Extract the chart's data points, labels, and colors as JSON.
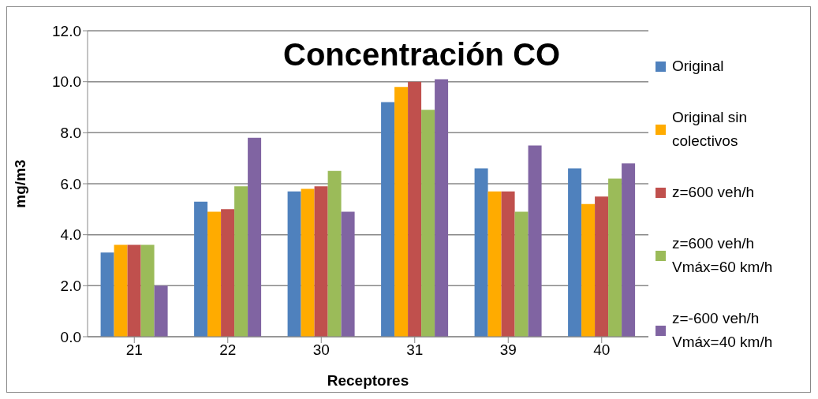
{
  "chart_data": {
    "type": "bar",
    "title": "Concentración CO",
    "xlabel": "Receptores",
    "ylabel": "mg/m3",
    "categories": [
      "21",
      "22",
      "30",
      "31",
      "39",
      "40"
    ],
    "series": [
      {
        "name": "Original",
        "color": "#4f81bd",
        "values": [
          3.3,
          5.3,
          5.7,
          9.2,
          6.6,
          6.6
        ]
      },
      {
        "name": "Original sin colectivos",
        "color": "#ffab00",
        "values": [
          3.6,
          4.9,
          5.8,
          9.8,
          5.7,
          5.2
        ]
      },
      {
        "name": "z=600 veh/h",
        "color": "#c0504d",
        "values": [
          3.6,
          5.0,
          5.9,
          10.0,
          5.7,
          5.5
        ]
      },
      {
        "name": "z=600 veh/h Vmáx=60 km/h",
        "color": "#9bbb59",
        "values": [
          3.6,
          5.9,
          6.5,
          8.9,
          4.9,
          6.2
        ]
      },
      {
        "name": "z=-600 veh/h Vmáx=40 km/h",
        "color": "#8064a2",
        "values": [
          2.0,
          7.8,
          4.9,
          10.1,
          7.5,
          6.8
        ]
      }
    ],
    "ylim": [
      0,
      12
    ],
    "yticks": [
      {
        "value": 0,
        "label": "0.0"
      },
      {
        "value": 2,
        "label": "2.0"
      },
      {
        "value": 4,
        "label": "4.0"
      },
      {
        "value": 6,
        "label": "6.0"
      },
      {
        "value": 8,
        "label": "8.0"
      },
      {
        "value": 10,
        "label": "10.0"
      },
      {
        "value": 12,
        "label": "12.0"
      }
    ],
    "grid": "y",
    "legend": "right"
  }
}
